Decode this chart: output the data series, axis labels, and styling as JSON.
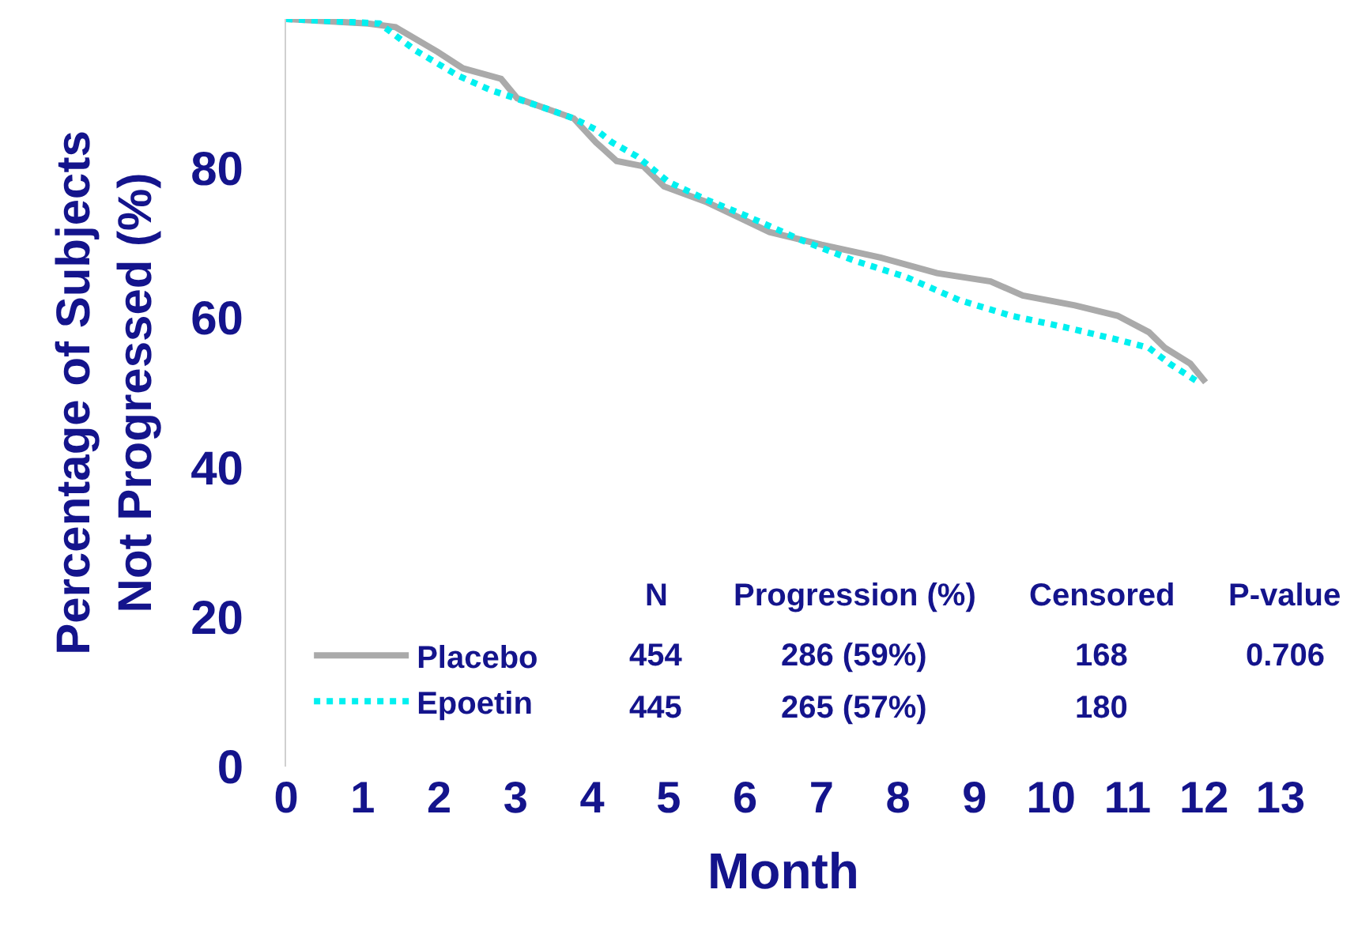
{
  "chart_data": {
    "type": "line",
    "xlabel": "Month",
    "ylabel": "Percentage of Subjects\nNot Progressed (%)",
    "xlim": [
      0,
      13
    ],
    "xticks": [
      0,
      1,
      2,
      3,
      4,
      5,
      6,
      7,
      8,
      9,
      10,
      11,
      12,
      13
    ],
    "ylim": [
      0,
      100
    ],
    "yticks": [
      0,
      20,
      40,
      60,
      80
    ],
    "grid": false,
    "legend": "bottom left",
    "marker": "none",
    "series": [
      {
        "name": "Placebo",
        "color": "#aaaaaa",
        "line_style": "solid",
        "x": [
          0,
          1.07,
          1.43,
          1.98,
          2.31,
          2.81,
          3.02,
          3.76,
          4.05,
          4.32,
          4.67,
          4.94,
          5.5,
          5.93,
          6.32,
          7.0,
          7.77,
          8.51,
          9.21,
          9.63,
          10.31,
          10.87,
          11.28,
          11.49,
          11.82,
          12.02
        ],
        "values": [
          100,
          99.4,
          98.9,
          95.6,
          93.4,
          92,
          89.4,
          86.7,
          83.5,
          81,
          80.3,
          77.6,
          75.5,
          73.4,
          71.5,
          69.8,
          68.1,
          66,
          64.9,
          63,
          61.7,
          60.3,
          58.1,
          56,
          53.9,
          51.4
        ]
      },
      {
        "name": "Epoetin",
        "color": "#00f0f0",
        "line_style": "dotted",
        "x": [
          0,
          1.22,
          1.69,
          2.25,
          2.67,
          3.35,
          3.76,
          4.05,
          4.26,
          4.59,
          5.0,
          5.5,
          6.03,
          6.74,
          7.42,
          8.1,
          8.8,
          9.48,
          10.17,
          10.87,
          11.28,
          11.55,
          11.96
        ],
        "values": [
          100,
          99.4,
          95.8,
          92.4,
          90.5,
          88.2,
          86.7,
          85.2,
          83.5,
          81.6,
          78.2,
          75.8,
          73.6,
          70.4,
          67.7,
          65.5,
          62.4,
          60.3,
          58.8,
          57.1,
          56,
          53.9,
          51.2
        ]
      }
    ],
    "annotations": [
      "N",
      "Progression (%)",
      "Censored",
      "P-value",
      "454",
      "286 (59%)",
      "168",
      "0.706",
      "445",
      "265 (57%)",
      "180"
    ]
  }
}
